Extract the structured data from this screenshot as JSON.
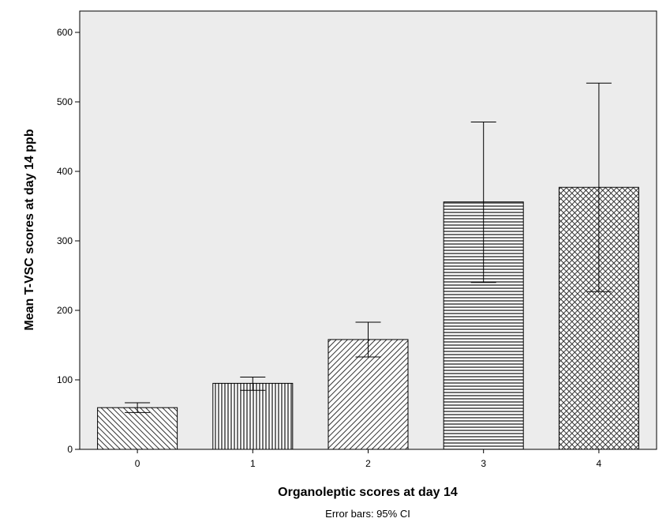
{
  "chart_data": {
    "type": "bar",
    "categories": [
      "0",
      "1",
      "2",
      "3",
      "4"
    ],
    "values": [
      60,
      95,
      158,
      356,
      377
    ],
    "error_bars": {
      "lower": [
        53,
        85,
        133,
        240,
        227
      ],
      "upper": [
        67,
        104,
        183,
        471,
        527
      ]
    },
    "fill_patterns": [
      "diagonal-backslash",
      "vertical-lines",
      "diagonal-slash",
      "horizontal-lines",
      "crosshatch"
    ],
    "xlabel": "Organoleptic scores at day 14",
    "ylabel": "Mean T-VSC scores at day 14 ppb",
    "note": "Error bars: 95% CI",
    "yticks": [
      0,
      100,
      200,
      300,
      400,
      500,
      600
    ],
    "ylim": [
      0,
      600
    ],
    "grid": false,
    "plot_background": "#ececec",
    "bar_fill": "#ffffff",
    "bar_pattern_color": "#333333"
  }
}
